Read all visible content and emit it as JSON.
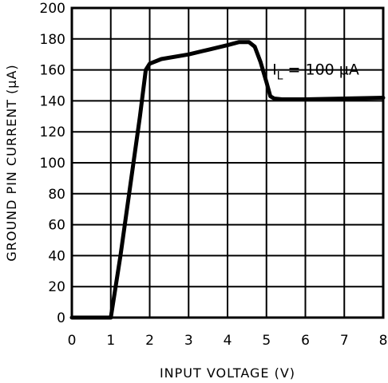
{
  "chart_data": {
    "type": "line",
    "xlabel": "INPUT VOLTAGE (V)",
    "ylabel": "GROUND PIN CURRENT (µA)",
    "xlim": [
      0,
      8
    ],
    "ylim": [
      0,
      200
    ],
    "xticks": [
      "0",
      "1",
      "2",
      "3",
      "4",
      "5",
      "6",
      "7",
      "8"
    ],
    "yticks": [
      "0",
      "20",
      "40",
      "60",
      "80",
      "100",
      "120",
      "140",
      "160",
      "180",
      "200"
    ],
    "grid": true,
    "annotation": {
      "prefix": "I",
      "subscript": "L",
      "rest": " = 100 µA",
      "x": 5.15,
      "y": 157
    },
    "series": [
      {
        "x": [
          0,
          1.0,
          1.25,
          1.5,
          1.75,
          1.9,
          2.0,
          2.3,
          3.0,
          3.5,
          4.0,
          4.3,
          4.55,
          4.7,
          4.85,
          5.0,
          5.1,
          5.2,
          5.4,
          6.0,
          7.0,
          8.0
        ],
        "y": [
          0,
          0,
          40,
          85,
          130,
          160,
          164,
          167,
          170,
          173,
          176,
          178,
          178,
          175,
          165,
          152,
          143,
          141.5,
          141,
          141,
          141.5,
          142
        ]
      }
    ]
  }
}
